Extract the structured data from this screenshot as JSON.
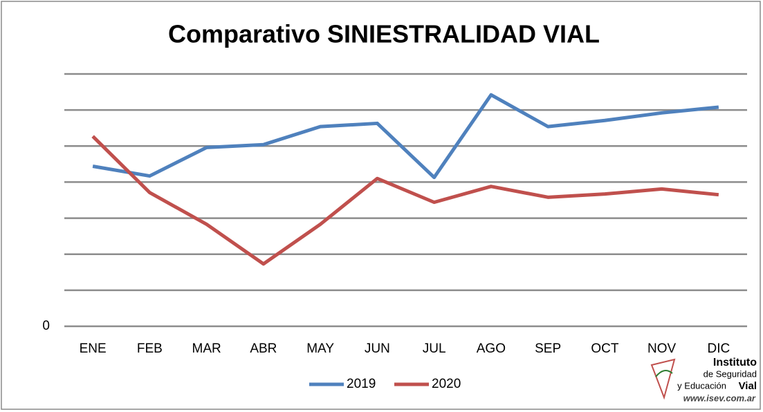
{
  "chart_data": {
    "type": "line",
    "title": "Comparativo SINIESTRALIDAD VIAL",
    "categories": [
      "ENE",
      "FEB",
      "MAR",
      "ABR",
      "MAY",
      "JUN",
      "JUL",
      "AGO",
      "SEP",
      "OCT",
      "NOV",
      "DIC"
    ],
    "series": [
      {
        "name": "2019",
        "color": "#4f81bd",
        "values": [
          4.44,
          4.17,
          4.96,
          5.04,
          5.54,
          5.63,
          4.13,
          6.42,
          5.54,
          5.71,
          5.92,
          6.08
        ]
      },
      {
        "name": "2020",
        "color": "#c0504d",
        "values": [
          5.27,
          3.71,
          2.83,
          1.73,
          2.83,
          4.1,
          3.44,
          3.88,
          3.58,
          3.67,
          3.81,
          3.65
        ]
      }
    ],
    "ylim": [
      0,
      7
    ],
    "yticks": [
      0
    ],
    "ygrid": [
      0,
      1,
      2,
      3,
      4,
      5,
      6,
      7
    ],
    "grid": true,
    "legend": "bottom"
  },
  "logo": {
    "line1": "Instituto",
    "line2": "de Seguridad",
    "line3": "y Educación",
    "line4": "Vial",
    "url": "www.isev.com.ar"
  }
}
